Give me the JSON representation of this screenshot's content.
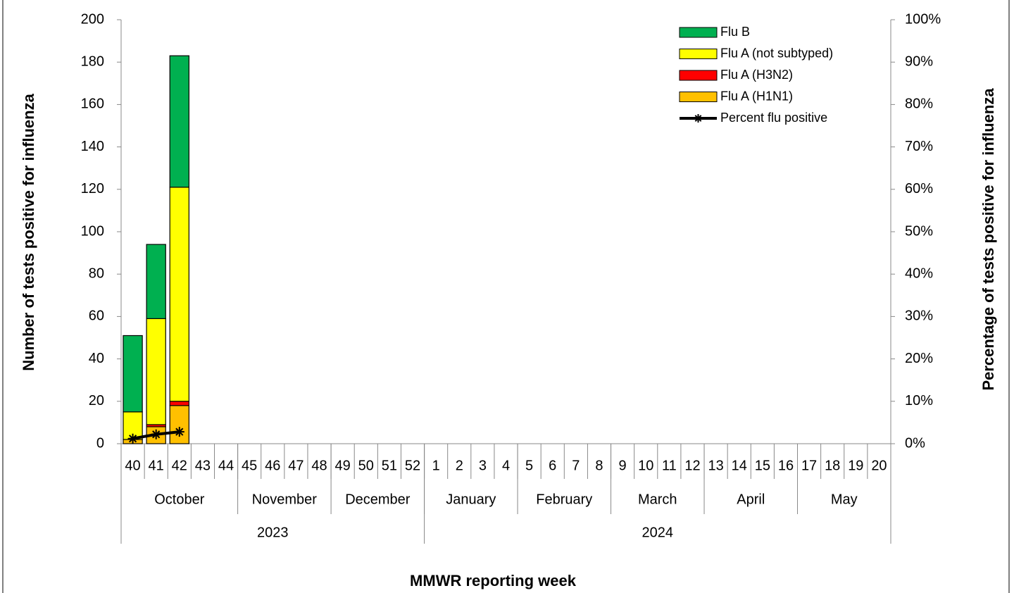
{
  "chart_data": {
    "type": "bar",
    "x_title": "MMWR reporting week",
    "y_title": "Number of tests positive for influenza",
    "y2_title": "Percentage  of  tests  positive for influenza",
    "categories": [
      "40",
      "41",
      "42",
      "43",
      "44",
      "45",
      "46",
      "47",
      "48",
      "49",
      "50",
      "51",
      "52",
      "1",
      "2",
      "3",
      "4",
      "5",
      "6",
      "7",
      "8",
      "9",
      "10",
      "11",
      "12",
      "13",
      "14",
      "15",
      "16",
      "17",
      "18",
      "19",
      "20"
    ],
    "months": [
      "October",
      null,
      null,
      null,
      null,
      "November",
      null,
      null,
      null,
      "December",
      null,
      null,
      null,
      "January",
      null,
      null,
      null,
      "February",
      null,
      null,
      null,
      "March",
      null,
      null,
      null,
      "April",
      null,
      null,
      null,
      "May",
      null,
      null,
      null
    ],
    "years": [
      "2023",
      null,
      null,
      null,
      null,
      null,
      null,
      null,
      null,
      null,
      null,
      null,
      null,
      "2024",
      null,
      null,
      null,
      null,
      null,
      null,
      null,
      null,
      null,
      null,
      null,
      null,
      null,
      null,
      null,
      null,
      null,
      null,
      null
    ],
    "ylim": [
      0,
      200
    ],
    "yticks": [
      0,
      20,
      40,
      60,
      80,
      100,
      120,
      140,
      160,
      180,
      200
    ],
    "y2lim": [
      0,
      100
    ],
    "y2ticks": [
      {
        "value": 0,
        "label": "0%"
      },
      {
        "value": 10,
        "label": "10%"
      },
      {
        "value": 20,
        "label": "20%"
      },
      {
        "value": 30,
        "label": "30%"
      },
      {
        "value": 40,
        "label": "40%"
      },
      {
        "value": 50,
        "label": "50%"
      },
      {
        "value": 60,
        "label": "60%"
      },
      {
        "value": 70,
        "label": "70%"
      },
      {
        "value": 80,
        "label": "80%"
      },
      {
        "value": 90,
        "label": "90%"
      },
      {
        "value": 100,
        "label": "100%"
      }
    ],
    "legend": "top-right",
    "series": [
      {
        "name": "Flu A (H1N1)",
        "color": "#ffc000",
        "values": [
          2,
          8,
          18,
          null,
          null,
          null,
          null,
          null,
          null,
          null,
          null,
          null,
          null,
          null,
          null,
          null,
          null,
          null,
          null,
          null,
          null,
          null,
          null,
          null,
          null,
          null,
          null,
          null,
          null,
          null,
          null,
          null,
          null
        ]
      },
      {
        "name": "Flu A (H3N2)",
        "color": "#ff0000",
        "values": [
          0,
          1,
          2,
          null,
          null,
          null,
          null,
          null,
          null,
          null,
          null,
          null,
          null,
          null,
          null,
          null,
          null,
          null,
          null,
          null,
          null,
          null,
          null,
          null,
          null,
          null,
          null,
          null,
          null,
          null,
          null,
          null,
          null
        ]
      },
      {
        "name": "Flu A (not subtyped)",
        "color": "#ffff00",
        "values": [
          13,
          50,
          101,
          null,
          null,
          null,
          null,
          null,
          null,
          null,
          null,
          null,
          null,
          null,
          null,
          null,
          null,
          null,
          null,
          null,
          null,
          null,
          null,
          null,
          null,
          null,
          null,
          null,
          null,
          null,
          null,
          null,
          null
        ]
      },
      {
        "name": "Flu B",
        "color": "#00b050",
        "values": [
          36,
          35,
          62,
          null,
          null,
          null,
          null,
          null,
          null,
          null,
          null,
          null,
          null,
          null,
          null,
          null,
          null,
          null,
          null,
          null,
          null,
          null,
          null,
          null,
          null,
          null,
          null,
          null,
          null,
          null,
          null,
          null,
          null
        ]
      },
      {
        "name": "Percent flu positive",
        "color": "#000000",
        "type": "line",
        "axis": "y2",
        "values": [
          1.2,
          2.2,
          2.8,
          null,
          null,
          null,
          null,
          null,
          null,
          null,
          null,
          null,
          null,
          null,
          null,
          null,
          null,
          null,
          null,
          null,
          null,
          null,
          null,
          null,
          null,
          null,
          null,
          null,
          null,
          null,
          null,
          null,
          null
        ]
      }
    ]
  }
}
